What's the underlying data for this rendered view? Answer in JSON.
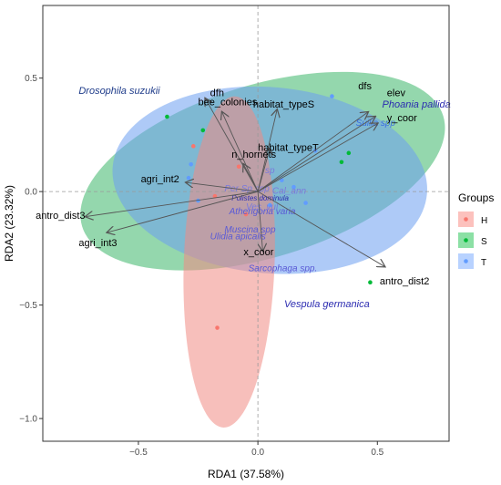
{
  "chart_data": {
    "type": "scatter",
    "xlabel": "RDA1 (37.58%)",
    "ylabel": "RDA2 (23.32%)",
    "xlim": [
      -0.9,
      0.8
    ],
    "ylim": [
      -1.1,
      0.82
    ],
    "x_ticks": [
      -0.5,
      0.0,
      0.5
    ],
    "x_tick_labels": [
      "−0.5",
      "0.0",
      "0.5"
    ],
    "y_ticks": [
      -1.0,
      -0.5,
      0.0,
      0.5
    ],
    "y_tick_labels": [
      "−1.0",
      "−0.5",
      "0.0",
      "0.5"
    ],
    "grid": false,
    "refline_color": "#9a9a9a",
    "legend": {
      "title": "Groups",
      "placement": "right",
      "items": [
        {
          "label": "H",
          "color": "#f8766d"
        },
        {
          "label": "S",
          "color": "#00ba38"
        },
        {
          "label": "T",
          "color": "#619cff"
        }
      ]
    },
    "ellipses": [
      {
        "group": "S",
        "color": "#00ba38",
        "fill": "#3cb66a",
        "opacity": 0.55,
        "center": [
          0.02,
          0.09
        ],
        "rx": 0.79,
        "ry": 0.38,
        "angle_deg": -17
      },
      {
        "group": "T",
        "color": "#619cff",
        "fill": "#6b9ff0",
        "opacity": 0.55,
        "center": [
          0.05,
          0.05
        ],
        "rx": 0.66,
        "ry": 0.41,
        "angle_deg": 5
      },
      {
        "group": "H",
        "color": "#f8766d",
        "fill": "#f08a83",
        "opacity": 0.55,
        "center": [
          -0.12,
          -0.31
        ],
        "rx": 0.19,
        "ry": 0.73,
        "angle_deg": 2
      }
    ],
    "series": [
      {
        "name": "H",
        "color": "#f8766d",
        "points": [
          [
            -0.27,
            0.2
          ],
          [
            -0.18,
            -0.02
          ],
          [
            -0.17,
            -0.6
          ],
          [
            -0.08,
            0.11
          ],
          [
            -0.05,
            -0.1
          ]
        ]
      },
      {
        "name": "S",
        "color": "#00ba38",
        "points": [
          [
            -0.38,
            0.33
          ],
          [
            -0.23,
            0.27
          ],
          [
            0.35,
            0.13
          ],
          [
            0.38,
            0.17
          ],
          [
            0.47,
            -0.4
          ]
        ]
      },
      {
        "name": "T",
        "color": "#619cff",
        "points": [
          [
            -0.28,
            0.12
          ],
          [
            -0.29,
            0.06
          ],
          [
            -0.25,
            -0.04
          ],
          [
            0.31,
            0.42
          ],
          [
            0.24,
            0.18
          ],
          [
            0.1,
            0.05
          ],
          [
            0.15,
            0.02
          ],
          [
            0.05,
            -0.06
          ],
          [
            0.2,
            -0.05
          ]
        ]
      }
    ],
    "arrows": [
      {
        "label": "dfh",
        "x": -0.22,
        "y": 0.41,
        "lx": -0.2,
        "ly": 0.42,
        "anchor": "start"
      },
      {
        "label": "bee_colonies",
        "x": -0.15,
        "y": 0.35,
        "lx": -0.25,
        "ly": 0.38,
        "anchor": "start"
      },
      {
        "label": "habitat_typeS",
        "x": 0.08,
        "y": 0.36,
        "lx": -0.02,
        "ly": 0.37,
        "anchor": "start"
      },
      {
        "label": "habitat_typeT",
        "x": 0.05,
        "y": 0.19,
        "lx": 0.0,
        "ly": 0.18,
        "anchor": "start"
      },
      {
        "label": "n_hornets",
        "x": -0.06,
        "y": 0.12,
        "lx": -0.11,
        "ly": 0.15,
        "anchor": "start"
      },
      {
        "label": "dfs",
        "x": 0.46,
        "y": 0.35,
        "lx": 0.42,
        "ly": 0.45,
        "anchor": "start"
      },
      {
        "label": "elev",
        "x": 0.49,
        "y": 0.33,
        "lx": 0.54,
        "ly": 0.42,
        "anchor": "start"
      },
      {
        "label": "y_coor",
        "x": 0.5,
        "y": 0.3,
        "lx": 0.54,
        "ly": 0.31,
        "anchor": "start"
      },
      {
        "label": "agri_int2",
        "x": -0.3,
        "y": 0.04,
        "lx": -0.49,
        "ly": 0.04,
        "anchor": "start"
      },
      {
        "label": "antro_dist3",
        "x": -0.72,
        "y": -0.11,
        "lx": -0.93,
        "ly": -0.12,
        "anchor": "start"
      },
      {
        "label": "agri_int3",
        "x": -0.63,
        "y": -0.18,
        "lx": -0.75,
        "ly": -0.24,
        "anchor": "start"
      },
      {
        "label": "x_coor",
        "x": 0.02,
        "y": -0.26,
        "lx": -0.06,
        "ly": -0.28,
        "anchor": "start"
      },
      {
        "label": "antro_dist2",
        "x": 0.53,
        "y": -0.33,
        "lx": 0.51,
        "ly": -0.41,
        "anchor": "start"
      }
    ],
    "species_labels": [
      {
        "text": "Drosophila suzukii",
        "x": -0.75,
        "y": 0.43,
        "color": "#1f3c8a",
        "size": 11
      },
      {
        "text": "Phoania pallida",
        "x": 0.52,
        "y": 0.37,
        "color": "#2a2ab0",
        "size": 11
      },
      {
        "text": "Suilia spp",
        "x": 0.41,
        "y": 0.29,
        "color": "#3c6ee0",
        "size": 10
      },
      {
        "text": "Vespula germanica",
        "x": 0.11,
        "y": -0.51,
        "color": "#2a2ab0",
        "size": 11
      },
      {
        "text": "Atherigona varia",
        "x": -0.12,
        "y": -0.1,
        "color": "#5a5ad6",
        "size": 10
      },
      {
        "text": "Muscina spp",
        "x": -0.14,
        "y": -0.18,
        "color": "#5a5ad6",
        "size": 10
      },
      {
        "text": "Ulidia apicalis",
        "x": -0.2,
        "y": -0.21,
        "color": "#5a5ad6",
        "size": 10
      },
      {
        "text": "Sarcophaga spp.",
        "x": -0.04,
        "y": -0.35,
        "color": "#5a5ad6",
        "size": 10
      },
      {
        "text": "Polistes dominula",
        "x": -0.11,
        "y": -0.04,
        "color": "#2a2ab0",
        "size": 8
      },
      {
        "text": "Per Sp spp",
        "x": -0.14,
        "y": 0.0,
        "color": "#7a7adc",
        "size": 10
      },
      {
        "text": "Cal_ann",
        "x": 0.06,
        "y": -0.01,
        "color": "#7a7adc",
        "size": 10
      },
      {
        "text": "Ves_vul",
        "x": -0.05,
        "y": -0.08,
        "color": "#7a7adc",
        "size": 10
      },
      {
        "text": "sp",
        "x": 0.03,
        "y": 0.08,
        "color": "#7a7adc",
        "size": 10
      }
    ]
  }
}
